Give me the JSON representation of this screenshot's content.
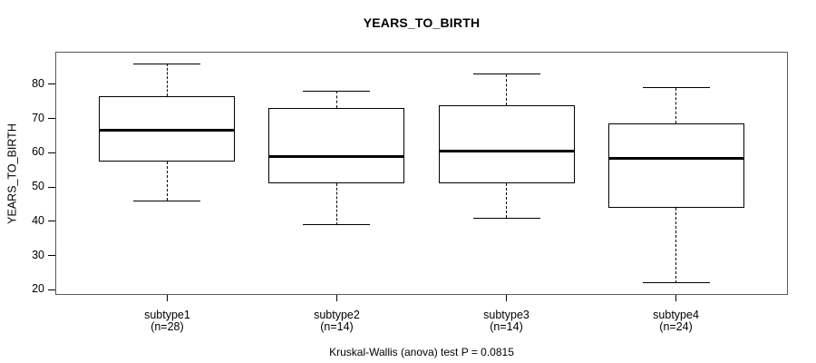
{
  "header": {
    "title": "YEARS_TO_BIRTH"
  },
  "chart_data": {
    "type": "boxplot",
    "title": "YEARS_TO_BIRTH",
    "ylabel": "YEARS_TO_BIRTH",
    "xlabel": "",
    "categories": [
      "subtype1",
      "subtype2",
      "subtype3",
      "subtype4"
    ],
    "category_sublabels": [
      "(n=28)",
      "(n=14)",
      "(n=14)",
      "(n=24)"
    ],
    "series": [
      {
        "name": "subtype1",
        "n": 28,
        "whisker_low": 46,
        "q1": 57.5,
        "median": 66.5,
        "q3": 76.5,
        "whisker_high": 86,
        "outliers": []
      },
      {
        "name": "subtype2",
        "n": 14,
        "whisker_low": 39,
        "q1": 51,
        "median": 59,
        "q3": 73,
        "whisker_high": 78,
        "outliers": []
      },
      {
        "name": "subtype3",
        "n": 14,
        "whisker_low": 41,
        "q1": 51,
        "median": 60.5,
        "q3": 74,
        "whisker_high": 83,
        "outliers": []
      },
      {
        "name": "subtype4",
        "n": 24,
        "whisker_low": 22,
        "q1": 44,
        "median": 58.5,
        "q3": 68.5,
        "whisker_high": 79,
        "outliers": []
      }
    ],
    "yticks": [
      20,
      30,
      40,
      50,
      60,
      70,
      80
    ],
    "ylim": [
      18.5,
      89.5
    ],
    "grid": false,
    "legend": false,
    "annotation": "Kruskal-Wallis (anova) test P = 0.0815"
  },
  "colors": {
    "box_stroke": "#000000",
    "median": "#000000",
    "whisker": "#000000",
    "frame": "#5a5a5a",
    "background": "#ffffff",
    "text": "#000000"
  }
}
